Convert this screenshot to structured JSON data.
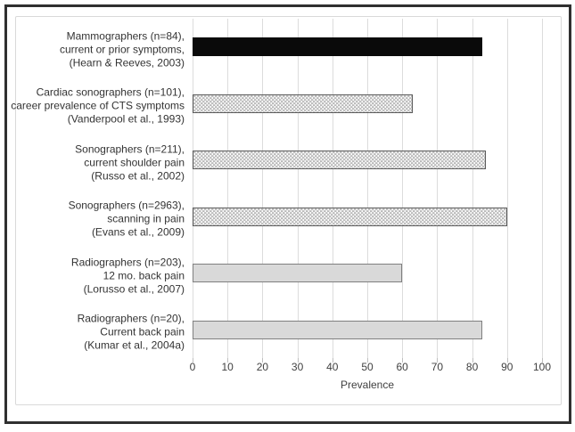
{
  "chart_data": {
    "type": "bar",
    "orientation": "horizontal",
    "xlabel": "Prevalence",
    "xlim": [
      0,
      100
    ],
    "xticks": [
      0,
      10,
      20,
      30,
      40,
      50,
      60,
      70,
      80,
      90,
      100
    ],
    "grid": true,
    "legend": false,
    "bars": [
      {
        "label_lines": [
          "Mammographers (n=84),",
          "current or prior symptoms,",
          "(Hearn & Reeves, 2003)"
        ],
        "value": 83,
        "style": "solid-black"
      },
      {
        "label_lines": [
          "Cardiac sonographers (n=101),",
          "career prevalence of CTS symptoms",
          "(Vanderpool et al., 1993)"
        ],
        "value": 63,
        "style": "dot-pattern"
      },
      {
        "label_lines": [
          "Sonographers (n=211),",
          "current shoulder pain",
          "(Russo et al., 2002)"
        ],
        "value": 84,
        "style": "dot-pattern"
      },
      {
        "label_lines": [
          "Sonographers (n=2963),",
          "scanning in pain",
          "(Evans et al., 2009)"
        ],
        "value": 90,
        "style": "dot-pattern"
      },
      {
        "label_lines": [
          "Radiographers (n=203),",
          "12 mo. back pain",
          "(Lorusso et al., 2007)"
        ],
        "value": 60,
        "style": "solid-gray"
      },
      {
        "label_lines": [
          "Radiographers (n=20),",
          "Current back pain",
          "(Kumar et al., 2004a)"
        ],
        "value": 83,
        "style": "solid-gray"
      }
    ],
    "colors": {
      "black_bar": "#0a0a0a",
      "gray_bar_fill": "#d9d9d9",
      "gray_bar_border": "#7f7f7f",
      "pattern_dash": "#8c8c8c",
      "pattern_border": "#595959",
      "gridline": "#dcdcdc",
      "tick": "#bfbfbf",
      "axis_text": "#404040",
      "label_text": "#333333",
      "frame_border": "#d9d9d9",
      "outer_border": "#303030"
    }
  }
}
